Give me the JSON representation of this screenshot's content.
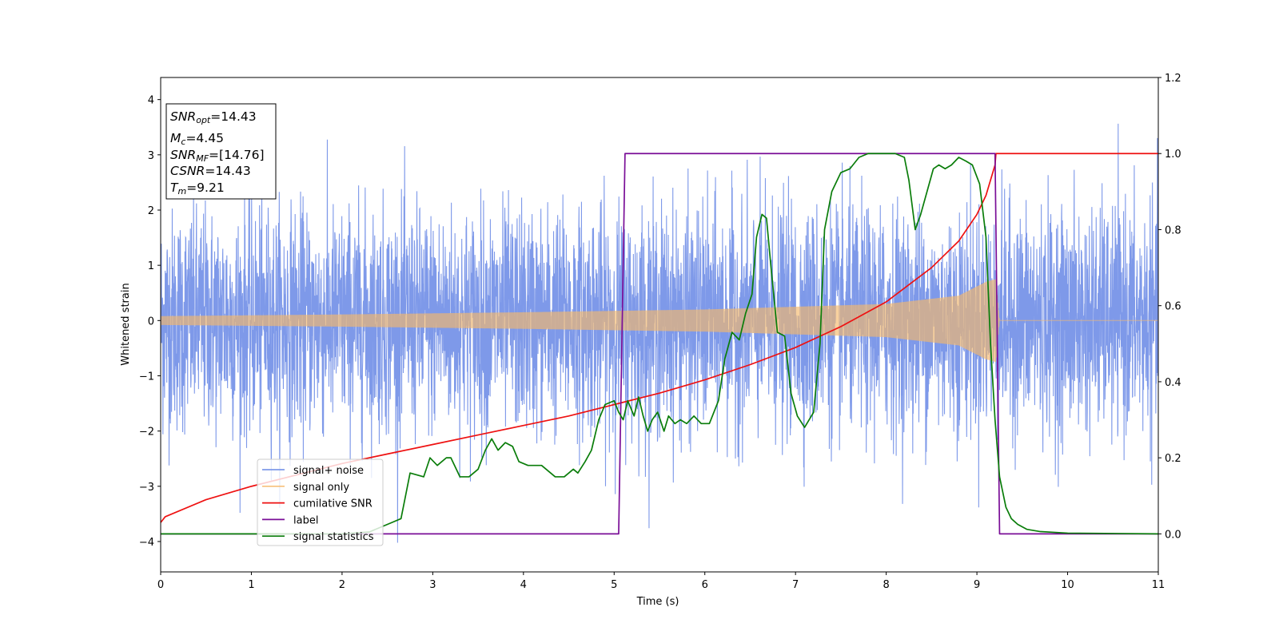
{
  "chart_data": {
    "type": "line",
    "title": "",
    "xlabel": "Time (s)",
    "ylabel": "Whitened strain",
    "xlim": [
      0,
      11
    ],
    "ylim": [
      -4.55,
      4.4
    ],
    "y2lim": [
      -0.1,
      1.2
    ],
    "x_ticks": [
      "0",
      "1",
      "2",
      "3",
      "4",
      "5",
      "6",
      "7",
      "8",
      "9",
      "10",
      "11"
    ],
    "y_ticks": [
      {
        "v": -4,
        "label": "−4"
      },
      {
        "v": -3,
        "label": "−3"
      },
      {
        "v": -2,
        "label": "−2"
      },
      {
        "v": -1,
        "label": "−1"
      },
      {
        "v": 0,
        "label": "0"
      },
      {
        "v": 1,
        "label": "1"
      },
      {
        "v": 2,
        "label": "2"
      },
      {
        "v": 3,
        "label": "3"
      },
      {
        "v": 4,
        "label": "4"
      }
    ],
    "y2_ticks": [
      {
        "v": 0.0,
        "label": "0.0"
      },
      {
        "v": 0.2,
        "label": "0.2"
      },
      {
        "v": 0.4,
        "label": "0.4"
      },
      {
        "v": 0.6,
        "label": "0.6"
      },
      {
        "v": 0.8,
        "label": "0.8"
      },
      {
        "v": 1.0,
        "label": "1.0"
      },
      {
        "v": 1.2,
        "label": "1.2"
      }
    ],
    "grid": false,
    "legend_position": "lower-left",
    "annotation": {
      "lines": [
        {
          "main": "SNR",
          "sub": "opt",
          "rest": "=14.43"
        },
        {
          "main": "M",
          "sub": "c",
          "rest": "=4.45"
        },
        {
          "main": "SNR",
          "sub": "MF",
          "rest": "=[14.76]"
        },
        {
          "main": "CSNR",
          "sub": "",
          "rest": "=14.43"
        },
        {
          "main": "T",
          "sub": "m",
          "rest": "=9.21"
        }
      ]
    },
    "series": [
      {
        "name": "signal+ noise",
        "color": "#7793e8",
        "axis": "left",
        "style": "noise",
        "t_end": 11,
        "std": 1.0,
        "y_range": [
          -4.15,
          4.0
        ]
      },
      {
        "name": "signal only",
        "color": "#f5b96c",
        "axis": "left",
        "style": "chirp",
        "amplitude_envelope": [
          [
            0,
            0.08
          ],
          [
            2,
            0.11
          ],
          [
            4,
            0.15
          ],
          [
            6,
            0.2
          ],
          [
            8,
            0.3
          ],
          [
            8.8,
            0.45
          ],
          [
            9.1,
            0.7
          ],
          [
            9.21,
            0.75
          ]
        ],
        "merger_time": 9.21
      },
      {
        "name": "cumilative SNR",
        "color": "#ee1111",
        "axis": "right",
        "x": [
          0,
          0.05,
          0.5,
          1,
          1.5,
          2,
          2.5,
          3,
          3.5,
          4,
          4.5,
          5,
          5.5,
          6,
          6.5,
          7,
          7.5,
          8,
          8.5,
          8.8,
          9,
          9.1,
          9.2,
          9.21,
          11
        ],
        "y": [
          0.03,
          0.045,
          0.09,
          0.125,
          0.155,
          0.185,
          0.21,
          0.235,
          0.26,
          0.285,
          0.31,
          0.34,
          0.37,
          0.405,
          0.445,
          0.49,
          0.545,
          0.61,
          0.7,
          0.77,
          0.84,
          0.89,
          0.97,
          1.0,
          1.0
        ]
      },
      {
        "name": "label",
        "color": "#7a0e97",
        "axis": "right",
        "x": [
          0,
          5.05,
          5.12,
          9.2,
          9.25,
          11
        ],
        "y": [
          0.0,
          0.0,
          1.0,
          1.0,
          0.0,
          0.0
        ]
      },
      {
        "name": "signal statistics",
        "color": "#0a7d0a",
        "axis": "right",
        "x": [
          0,
          0.3,
          1,
          2,
          2.3,
          2.45,
          2.55,
          2.65,
          2.75,
          2.9,
          2.97,
          3.05,
          3.15,
          3.2,
          3.3,
          3.4,
          3.5,
          3.58,
          3.65,
          3.72,
          3.8,
          3.88,
          3.95,
          4.05,
          4.1,
          4.2,
          4.3,
          4.35,
          4.45,
          4.55,
          4.6,
          4.68,
          4.75,
          4.83,
          4.9,
          5.0,
          5.05,
          5.1,
          5.15,
          5.22,
          5.27,
          5.32,
          5.37,
          5.42,
          5.48,
          5.55,
          5.6,
          5.67,
          5.73,
          5.8,
          5.88,
          5.96,
          6.05,
          6.15,
          6.22,
          6.3,
          6.38,
          6.45,
          6.52,
          6.57,
          6.63,
          6.68,
          6.73,
          6.8,
          6.88,
          6.95,
          7.02,
          7.1,
          7.2,
          7.27,
          7.32,
          7.4,
          7.5,
          7.6,
          7.7,
          7.8,
          7.9,
          8.0,
          8.1,
          8.2,
          8.25,
          8.32,
          8.38,
          8.45,
          8.52,
          8.58,
          8.65,
          8.72,
          8.8,
          8.88,
          8.95,
          9.03,
          9.1,
          9.15,
          9.2,
          9.25,
          9.32,
          9.38,
          9.45,
          9.55,
          9.7,
          10,
          11
        ],
        "y": [
          0.0,
          0.0,
          0.0,
          0.0,
          0.005,
          0.02,
          0.03,
          0.04,
          0.16,
          0.15,
          0.2,
          0.18,
          0.2,
          0.2,
          0.15,
          0.15,
          0.17,
          0.22,
          0.25,
          0.22,
          0.24,
          0.23,
          0.19,
          0.18,
          0.18,
          0.18,
          0.16,
          0.15,
          0.15,
          0.17,
          0.16,
          0.19,
          0.22,
          0.3,
          0.34,
          0.35,
          0.32,
          0.3,
          0.35,
          0.31,
          0.36,
          0.31,
          0.27,
          0.3,
          0.32,
          0.27,
          0.31,
          0.29,
          0.3,
          0.29,
          0.31,
          0.29,
          0.29,
          0.35,
          0.46,
          0.53,
          0.51,
          0.58,
          0.63,
          0.78,
          0.84,
          0.83,
          0.7,
          0.53,
          0.52,
          0.37,
          0.31,
          0.28,
          0.32,
          0.5,
          0.8,
          0.9,
          0.95,
          0.96,
          0.99,
          1.0,
          1.0,
          1.0,
          1.0,
          0.99,
          0.93,
          0.8,
          0.84,
          0.9,
          0.96,
          0.97,
          0.96,
          0.97,
          0.99,
          0.98,
          0.97,
          0.92,
          0.78,
          0.5,
          0.3,
          0.15,
          0.07,
          0.04,
          0.025,
          0.012,
          0.006,
          0.002,
          0.0
        ]
      }
    ]
  }
}
